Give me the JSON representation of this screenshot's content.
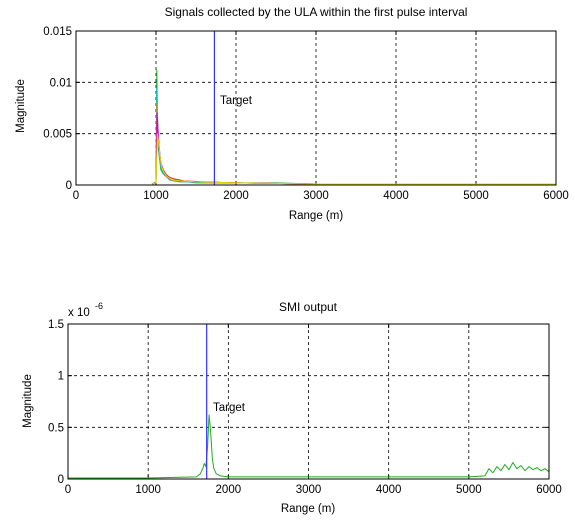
{
  "chart_data": [
    {
      "type": "line",
      "title": "Signals collected by the ULA within the first pulse interval",
      "xlabel": "Range (m)",
      "ylabel": "Magnitude",
      "xlim": [
        0,
        6000
      ],
      "ylim": [
        0,
        0.015
      ],
      "xticks": [
        0,
        1000,
        2000,
        3000,
        4000,
        5000,
        6000
      ],
      "xtick_labels": [
        "0",
        "1000",
        "2000",
        "3000",
        "4000",
        "5000",
        "6000"
      ],
      "yticks": [
        0,
        0.005,
        0.01,
        0.015
      ],
      "ytick_labels": [
        "0",
        "0.005",
        "0.01",
        "0.015"
      ],
      "grid": true,
      "exponent_label": "",
      "annotation": {
        "text": "Target",
        "x": 1830,
        "y": 0.0086
      },
      "vline": {
        "x": 1730,
        "color": "#3333ff"
      },
      "series": [
        {
          "color": "#22aa22",
          "x": [
            950,
            1000,
            1010,
            1020,
            1030,
            1045,
            1060,
            1080,
            1100,
            1130,
            1170,
            1220,
            1300,
            1400,
            1500,
            1700,
            2000,
            2500,
            3000,
            4000,
            5000,
            6000
          ],
          "y": [
            0.0001,
            0.0003,
            0.0112,
            0.006,
            0.0035,
            0.0025,
            0.0015,
            0.0012,
            0.001,
            0.0008,
            0.0005,
            0.0004,
            0.0003,
            0.0003,
            0.0002,
            0.0002,
            0.0002,
            0.0002,
            0.0001,
            0.0001,
            0.0001,
            0.0001
          ]
        },
        {
          "color": "#00cccc",
          "x": [
            950,
            1000,
            1010,
            1025,
            1040,
            1060,
            1090,
            1120,
            1160,
            1250,
            1400,
            1600,
            2000,
            3000,
            4000,
            5000,
            6000
          ],
          "y": [
            0.0001,
            0.0002,
            0.0095,
            0.0048,
            0.003,
            0.0018,
            0.0012,
            0.0009,
            0.0006,
            0.0004,
            0.0003,
            0.0002,
            0.0002,
            0.0001,
            0.0001,
            0.0001,
            0.0001
          ]
        },
        {
          "color": "#ff8800",
          "x": [
            950,
            1000,
            1012,
            1025,
            1035,
            1050,
            1070,
            1100,
            1140,
            1200,
            1300,
            1500,
            2000,
            3000,
            4000,
            5000,
            6000
          ],
          "y": [
            0.0001,
            0.0002,
            0.008,
            0.0055,
            0.004,
            0.0025,
            0.0018,
            0.0012,
            0.0008,
            0.0005,
            0.0004,
            0.0003,
            0.0002,
            0.0001,
            0.0001,
            0.0001,
            0.0001
          ]
        },
        {
          "color": "#dd2222",
          "x": [
            950,
            1000,
            1015,
            1030,
            1045,
            1065,
            1090,
            1120,
            1160,
            1220,
            1350,
            1600,
            2000,
            3000,
            4000,
            5000,
            6000
          ],
          "y": [
            0.0001,
            0.0002,
            0.006,
            0.0045,
            0.003,
            0.002,
            0.0015,
            0.0011,
            0.0008,
            0.0006,
            0.0004,
            0.0003,
            0.0002,
            0.0001,
            0.0001,
            0.0001,
            0.0001
          ]
        },
        {
          "color": "#cc00cc",
          "x": [
            950,
            1000,
            1012,
            1028,
            1042,
            1060,
            1085,
            1115,
            1150,
            1200,
            1300,
            1500,
            2000,
            3000,
            4000,
            5000,
            6000
          ],
          "y": [
            0.0001,
            0.0002,
            0.007,
            0.005,
            0.0035,
            0.0022,
            0.0016,
            0.001,
            0.0007,
            0.0005,
            0.0004,
            0.0003,
            0.0002,
            0.0001,
            0.0001,
            0.0001,
            0.0001
          ]
        },
        {
          "color": "#dddd00",
          "x": [
            950,
            1000,
            1018,
            1035,
            1050,
            1070,
            1100,
            1140,
            1200,
            1300,
            1500,
            2000,
            3000,
            4000,
            5000,
            6000
          ],
          "y": [
            0.0001,
            0.0002,
            0.005,
            0.004,
            0.0028,
            0.0018,
            0.0012,
            0.0008,
            0.0005,
            0.0004,
            0.0003,
            0.0002,
            0.0001,
            0.0001,
            0.0001,
            0.0001
          ]
        }
      ]
    },
    {
      "type": "line",
      "title": "SMI output",
      "xlabel": "Range (m)",
      "ylabel": "Magnitude",
      "xlim": [
        0,
        6000
      ],
      "ylim": [
        0,
        1.5
      ],
      "xticks": [
        0,
        1000,
        2000,
        3000,
        4000,
        5000,
        6000
      ],
      "xtick_labels": [
        "0",
        "1000",
        "2000",
        "3000",
        "4000",
        "5000",
        "6000"
      ],
      "yticks": [
        0,
        0.5,
        1,
        1.5
      ],
      "ytick_labels": [
        "0",
        "0.5",
        "1",
        "1.5"
      ],
      "grid": true,
      "exponent_label": "x 10",
      "exponent_power": "-6",
      "annotation": {
        "text": "Target",
        "x": 1800,
        "y": 0.68
      },
      "vline": {
        "x": 1730,
        "color": "#3333ff"
      },
      "series": [
        {
          "color": "#22aa22",
          "x": [
            0,
            1000,
            1600,
            1650,
            1680,
            1700,
            1720,
            1740,
            1760,
            1780,
            1800,
            1820,
            1850,
            1900,
            2000,
            3000,
            4000,
            5000,
            5200,
            5250,
            5300,
            5350,
            5400,
            5450,
            5500,
            5550,
            5600,
            5650,
            5700,
            5750,
            5800,
            5850,
            5900,
            5950,
            6000
          ],
          "y": [
            0.01,
            0.01,
            0.02,
            0.05,
            0.1,
            0.15,
            0.12,
            0.3,
            0.62,
            0.45,
            0.2,
            0.1,
            0.05,
            0.03,
            0.02,
            0.02,
            0.02,
            0.02,
            0.03,
            0.1,
            0.06,
            0.12,
            0.08,
            0.14,
            0.09,
            0.16,
            0.1,
            0.13,
            0.08,
            0.12,
            0.09,
            0.11,
            0.08,
            0.1,
            0.07
          ]
        }
      ]
    }
  ]
}
